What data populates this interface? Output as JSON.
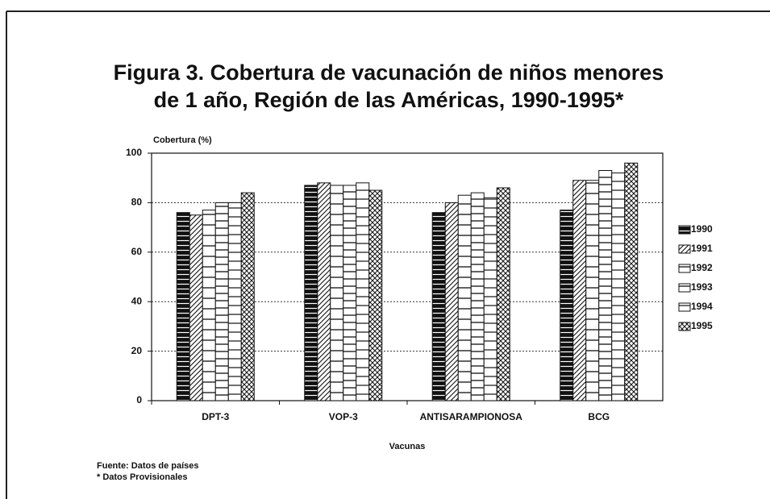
{
  "chart_data": {
    "type": "bar",
    "title": [
      "Figura 3.   Cobertura de vacunación de niños menores",
      "de 1 año, Región de las Américas, 1990-1995*"
    ],
    "y_label": "Cobertura (%)",
    "x_label": "Vacunas",
    "notes": [
      "Fuente: Datos de países",
      "* Datos Provisionales"
    ],
    "categories": [
      "DPT-3",
      "VOP-3",
      "ANTISARAMPIONOSA",
      "BCG"
    ],
    "series": [
      {
        "name": "1990",
        "color": "#111111",
        "pattern": "solid-lines",
        "values": [
          76,
          87,
          76,
          77
        ]
      },
      {
        "name": "1991",
        "color": "#111111",
        "pattern": "diagonal",
        "values": [
          75,
          88,
          80,
          89
        ]
      },
      {
        "name": "1992",
        "color": "#111111",
        "pattern": "lines-wide",
        "values": [
          77,
          87,
          83,
          89
        ]
      },
      {
        "name": "1993",
        "color": "#111111",
        "pattern": "lines",
        "values": [
          80,
          87,
          84,
          93
        ]
      },
      {
        "name": "1994",
        "color": "#111111",
        "pattern": "lines-narrow",
        "values": [
          80,
          88,
          82,
          92
        ]
      },
      {
        "name": "1995",
        "color": "#111111",
        "pattern": "crosshatch",
        "values": [
          84,
          85,
          86,
          96
        ]
      }
    ],
    "ylim": [
      0,
      100
    ],
    "yticks": [
      0,
      20,
      40,
      60,
      80,
      100
    ],
    "grid": true,
    "legend": "right"
  }
}
